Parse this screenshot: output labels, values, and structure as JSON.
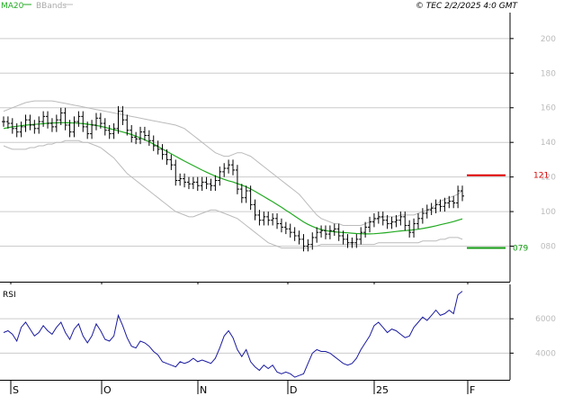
{
  "header": {
    "legend_ma": "MA20",
    "legend_bb": "BBands",
    "copyright": "© TEC 2/2/2025 4:0 GMT"
  },
  "colors": {
    "price": "#000000",
    "ma": "#22aa22",
    "bbands": "#bbbbbb",
    "resistance": "#dd0000",
    "support": "#119911",
    "rsi": "#1a1aa0",
    "grid": "#cccccc"
  },
  "chart_data": [
    {
      "type": "ohlc",
      "title": "",
      "ylim": [
        60,
        215
      ],
      "y_ticks": [
        80,
        100,
        120,
        140,
        160,
        180,
        200
      ],
      "x_ticks": [
        "S",
        "O",
        "N",
        "D",
        "25",
        "F"
      ],
      "resistance": {
        "value": 121,
        "label": "121"
      },
      "support": {
        "value": 79,
        "label": "079"
      },
      "series": [
        {
          "name": "Price",
          "close": [
            152,
            151,
            148,
            146,
            149,
            153,
            150,
            148,
            152,
            155,
            151,
            149,
            153,
            157,
            150,
            146,
            152,
            155,
            149,
            145,
            150,
            154,
            151,
            147,
            145,
            148,
            158,
            153,
            147,
            143,
            142,
            146,
            144,
            141,
            138,
            136,
            133,
            130,
            127,
            118,
            119,
            117,
            116,
            117,
            115,
            117,
            116,
            115,
            118,
            123,
            125,
            127,
            124,
            113,
            108,
            112,
            104,
            98,
            95,
            97,
            95,
            96,
            93,
            91,
            90,
            88,
            86,
            84,
            80,
            81,
            85,
            88,
            89,
            87,
            89,
            90,
            86,
            84,
            82,
            82,
            84,
            88,
            91,
            94,
            96,
            97,
            95,
            93,
            94,
            95,
            97,
            92,
            88,
            93,
            96,
            99,
            101,
            102,
            104,
            103,
            105,
            106,
            105,
            112,
            109
          ],
          "ma20": [
            148,
            148.5,
            149,
            149.3,
            149.6,
            150,
            150.2,
            150.4,
            150.6,
            150.8,
            151,
            151.2,
            151.3,
            151.4,
            151.4,
            151.3,
            151.2,
            151,
            150.8,
            150.5,
            150.2,
            149.8,
            149.3,
            148.7,
            148,
            147.3,
            146.7,
            146,
            145.3,
            144.5,
            143.6,
            142.6,
            141.5,
            140.3,
            139,
            137.6,
            136.2,
            134.8,
            133.4,
            132,
            130.6,
            129.2,
            127.9,
            126.6,
            125.3,
            124,
            122.8,
            121.6,
            120.5,
            119.5,
            118.6,
            117.8,
            117.1,
            116.2,
            115.3,
            114.3,
            113.1,
            111.7,
            110.2,
            108.7,
            107.2,
            105.7,
            104.1,
            102.5,
            100.8,
            99.1,
            97.4,
            95.7,
            94,
            92.6,
            91.4,
            90.4,
            89.6,
            89,
            88.6,
            88.3,
            88.1,
            87.9,
            87.7,
            87.5,
            87.3,
            87.2,
            87.1,
            87.1,
            87.2,
            87.4,
            87.6,
            87.9,
            88.2,
            88.5,
            88.8,
            89,
            89.2,
            89.5,
            89.8,
            90.2,
            90.7,
            91.2,
            91.8,
            92.4,
            93,
            93.6,
            94.2,
            95,
            95.8
          ],
          "bb_upper": [
            158,
            159,
            160,
            161,
            162,
            163,
            163.5,
            164,
            164,
            164,
            164,
            164,
            163.5,
            163,
            162.5,
            162,
            161.5,
            161,
            160.5,
            160,
            159.5,
            159,
            158.5,
            158,
            157.5,
            157,
            156.5,
            156,
            155.5,
            155,
            154.5,
            154,
            153.5,
            153,
            152.5,
            152,
            151.5,
            151,
            150.5,
            150,
            149,
            148,
            146,
            144,
            142,
            140,
            138,
            136,
            134,
            133,
            132,
            132,
            133,
            134,
            134,
            133,
            132,
            130,
            128,
            126,
            124,
            122,
            120,
            118,
            116,
            114,
            112,
            110,
            107,
            104,
            101,
            98,
            96,
            95,
            94,
            93,
            93,
            92,
            92,
            92,
            92,
            92,
            93,
            94,
            95,
            96,
            97,
            97,
            97,
            97,
            98,
            98,
            98,
            98,
            99,
            100,
            101,
            102,
            104,
            106,
            107,
            108,
            109,
            110,
            112
          ],
          "bb_lower": [
            138,
            137,
            136,
            136,
            136,
            136,
            137,
            137,
            138,
            138,
            139,
            139,
            140,
            140,
            141,
            141,
            141,
            141,
            140,
            140,
            139,
            138,
            137,
            135,
            133,
            131,
            128,
            125,
            122,
            120,
            118,
            116,
            114,
            112,
            110,
            108,
            106,
            104,
            102,
            100,
            99,
            98,
            97,
            97,
            98,
            99,
            100,
            101,
            101,
            100,
            99,
            98,
            97,
            96,
            94,
            92,
            90,
            88,
            86,
            84,
            82,
            81,
            80,
            79,
            79,
            79,
            79,
            79,
            79,
            79,
            80,
            80,
            81,
            81,
            81,
            81,
            81,
            81,
            81,
            81,
            81,
            81,
            81,
            81,
            81,
            82,
            82,
            82,
            82,
            82,
            82,
            82,
            82,
            82,
            82,
            83,
            83,
            83,
            83,
            84,
            84,
            85,
            85,
            85,
            84
          ]
        }
      ]
    },
    {
      "type": "line",
      "title": "RSI",
      "ylim": [
        25,
        80
      ],
      "y_ticks": [
        40,
        60
      ],
      "y_tick_labels": [
        "4000",
        "6000"
      ],
      "series": [
        {
          "name": "RSI",
          "values": [
            52,
            53,
            51,
            47,
            55,
            58,
            54,
            50,
            52,
            56,
            53,
            51,
            55,
            58,
            52,
            48,
            54,
            57,
            50,
            46,
            50,
            57,
            53,
            48,
            47,
            50,
            62,
            56,
            49,
            44,
            43,
            47,
            46,
            44,
            41,
            39,
            35,
            34,
            33,
            32,
            35,
            34,
            35,
            37,
            35,
            36,
            35,
            34,
            37,
            43,
            50,
            53,
            49,
            42,
            38,
            42,
            35,
            32,
            30,
            33,
            31,
            33,
            29,
            28,
            29,
            28,
            26,
            27,
            28,
            34,
            40,
            42,
            41,
            41,
            40,
            38,
            36,
            34,
            33,
            34,
            37,
            42,
            46,
            50,
            56,
            58,
            55,
            52,
            54,
            53,
            51,
            49,
            50,
            55,
            58,
            61,
            59,
            62,
            65,
            62,
            63,
            65,
            63,
            74,
            76
          ]
        }
      ]
    }
  ]
}
